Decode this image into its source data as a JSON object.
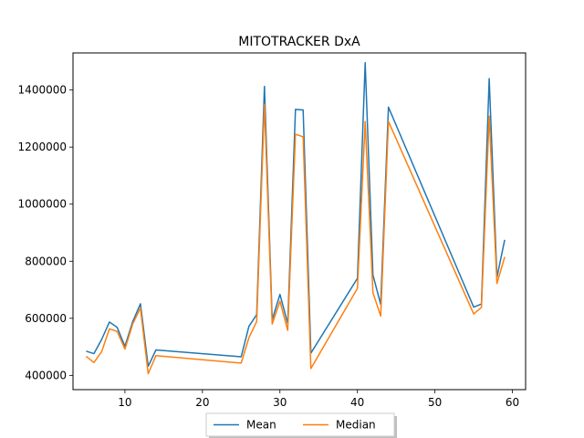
{
  "chart_data": {
    "type": "line",
    "title": "MITOTRACKER DxA",
    "xlabel": "",
    "ylabel": "",
    "xlim": [
      3.3,
      61.7
    ],
    "ylim": [
      350000,
      1530000
    ],
    "xticks": [
      10,
      20,
      30,
      40,
      50,
      60
    ],
    "yticks": [
      400000,
      600000,
      800000,
      1000000,
      1200000,
      1400000
    ],
    "grid": false,
    "legend_position": "bottom-center",
    "colors": {
      "Mean": "#1f77b4",
      "Median": "#ff7f0e"
    },
    "x": [
      5,
      6,
      7,
      8,
      9,
      10,
      11,
      12,
      13,
      14,
      25,
      26,
      27,
      28,
      29,
      30,
      31,
      32,
      33,
      34,
      40,
      41,
      42,
      43,
      44,
      55,
      56,
      57,
      58,
      59
    ],
    "series": [
      {
        "name": "Mean",
        "values": [
          485000,
          476000,
          526000,
          587000,
          568000,
          502000,
          588000,
          651000,
          432000,
          489000,
          465000,
          572000,
          613000,
          1413000,
          595000,
          684000,
          582000,
          1332000,
          1330000,
          478000,
          740000,
          1496000,
          752000,
          649000,
          1340000,
          639000,
          650000,
          1440000,
          744000,
          875000
        ]
      },
      {
        "name": "Median",
        "values": [
          467000,
          445000,
          483000,
          563000,
          554000,
          492000,
          580000,
          636000,
          406000,
          469000,
          443000,
          532000,
          589000,
          1350000,
          580000,
          660000,
          558000,
          1245000,
          1236000,
          424000,
          705000,
          1290000,
          690000,
          608000,
          1290000,
          615000,
          638000,
          1308000,
          722000,
          815000
        ]
      }
    ]
  }
}
